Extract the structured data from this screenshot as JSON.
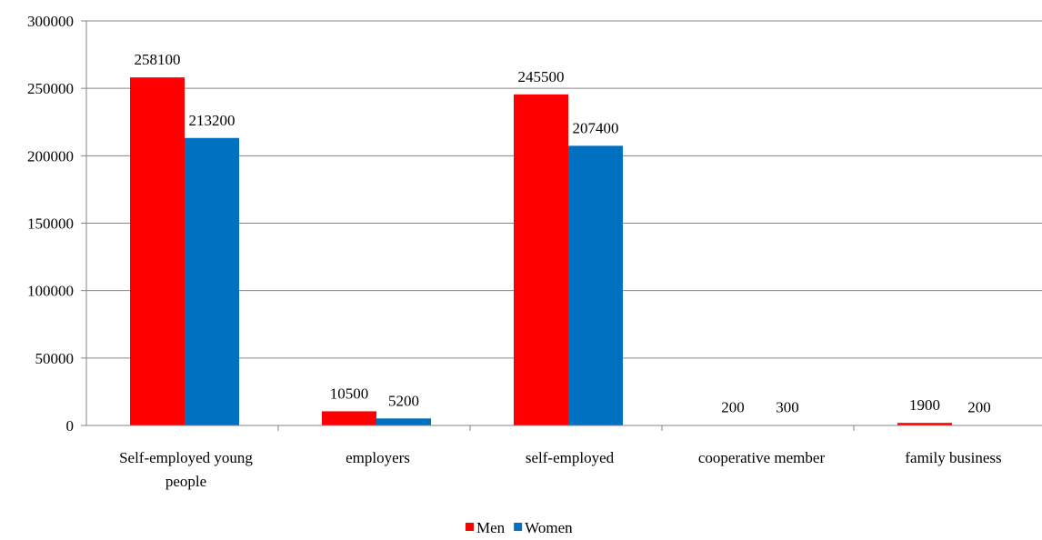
{
  "chart_data": {
    "type": "bar",
    "categories": [
      [
        "Self-employed young",
        "people"
      ],
      [
        "employers"
      ],
      [
        "self-employed"
      ],
      [
        "cooperative member"
      ],
      [
        "family business"
      ]
    ],
    "series": [
      {
        "name": "Men",
        "color": "#ff0000",
        "values": [
          258100,
          10500,
          245500,
          200,
          1900
        ]
      },
      {
        "name": "Women",
        "color": "#0070c0",
        "values": [
          213200,
          5200,
          207400,
          300,
          200
        ]
      }
    ],
    "yticks": [
      0,
      50000,
      100000,
      150000,
      200000,
      250000,
      300000
    ],
    "ylim": [
      0,
      300000
    ],
    "grid": true,
    "legend_position": "bottom-center",
    "title": "",
    "xlabel": "",
    "ylabel": ""
  }
}
